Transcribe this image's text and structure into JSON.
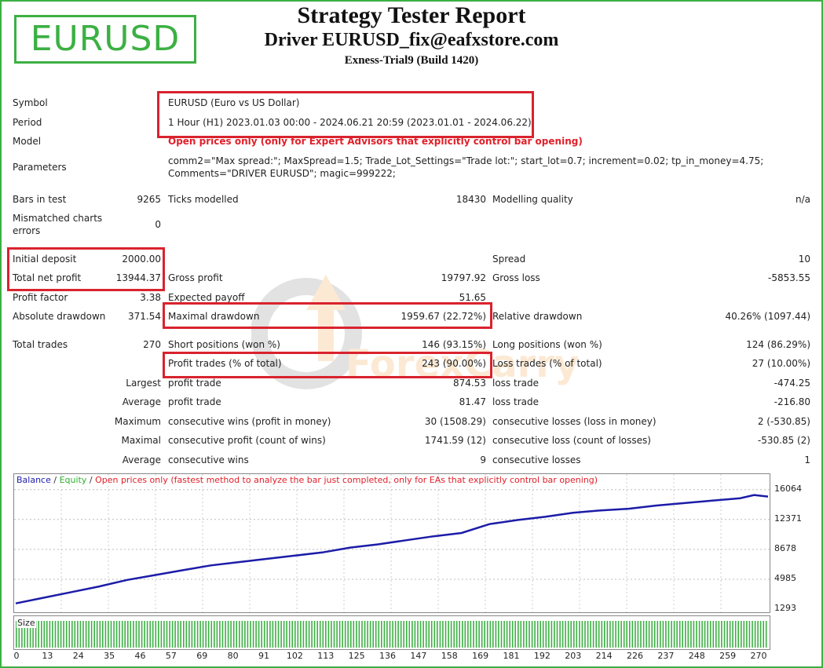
{
  "header": {
    "logo_text": "EURUSD",
    "title": "Strategy Tester Report",
    "subtitle": "Driver EURUSD_fix@eafxstore.com",
    "server": "Exness-Trial9 (Build 1420)"
  },
  "info": {
    "symbol_label": "Symbol",
    "symbol_value": "EURUSD (Euro vs US Dollar)",
    "period_label": "Period",
    "period_value": "1 Hour (H1) 2023.01.03 00:00 - 2024.06.21 20:59 (2023.01.01 - 2024.06.22)",
    "model_label": "Model",
    "model_value": "Open prices only (only for Expert Advisors that explicitly control bar opening)",
    "parameters_label": "Parameters",
    "parameters_line1": "comm2=\"Max spread:\"; MaxSpread=1.5; Trade_Lot_Settings=\"Trade lot:\"; start_lot=0.7; increment=0.02; tp_in_money=4.75;",
    "parameters_line2": "Comments=\"DRIVER EURUSD\"; magic=999222;"
  },
  "stats": {
    "bars_label": "Bars in test",
    "bars_value": "9265",
    "ticks_label": "Ticks modelled",
    "ticks_value": "18430",
    "quality_label": "Modelling quality",
    "quality_value": "n/a",
    "mismatch_label_1": "Mismatched charts",
    "mismatch_label_2": "errors",
    "mismatch_value": "0",
    "deposit_label": "Initial deposit",
    "deposit_value": "2000.00",
    "spread_label": "Spread",
    "spread_value": "10",
    "net_profit_label": "Total net profit",
    "net_profit_value": "13944.37",
    "gross_profit_label": "Gross profit",
    "gross_profit_value": "19797.92",
    "gross_loss_label": "Gross loss",
    "gross_loss_value": "-5853.55",
    "profit_factor_label": "Profit factor",
    "profit_factor_value": "3.38",
    "expected_payoff_label": "Expected payoff",
    "expected_payoff_value": "51.65",
    "abs_dd_label": "Absolute drawdown",
    "abs_dd_value": "371.54",
    "max_dd_label": "Maximal drawdown",
    "max_dd_value": "1959.67 (22.72%)",
    "rel_dd_label": "Relative drawdown",
    "rel_dd_value": "40.26% (1097.44)",
    "total_trades_label": "Total trades",
    "total_trades_value": "270",
    "short_label": "Short positions (won %)",
    "short_value": "146 (93.15%)",
    "long_label": "Long positions (won %)",
    "long_value": "124 (86.29%)",
    "profit_trades_label": "Profit trades (% of total)",
    "profit_trades_value": "243 (90.00%)",
    "loss_trades_label": "Loss trades (% of total)",
    "loss_trades_value": "27 (10.00%)",
    "largest_label": "Largest",
    "largest_profit_label": "profit trade",
    "largest_profit_value": "874.53",
    "largest_loss_label": "loss trade",
    "largest_loss_value": "-474.25",
    "average_label": "Average",
    "avg_profit_label": "profit trade",
    "avg_profit_value": "81.47",
    "avg_loss_label": "loss trade",
    "avg_loss_value": "-216.80",
    "maximum_label": "Maximum",
    "max_cons_wins_label": "consecutive wins (profit in money)",
    "max_cons_wins_value": "30 (1508.29)",
    "max_cons_losses_label": "consecutive losses (loss in money)",
    "max_cons_losses_value": "2 (-530.85)",
    "maximal_label": "Maximal",
    "maximal_profit_label": "consecutive profit (count of wins)",
    "maximal_profit_value": "1741.59 (12)",
    "maximal_loss_label": "consecutive loss (count of losses)",
    "maximal_loss_value": "-530.85 (2)",
    "average2_label": "Average",
    "avg_cons_wins_label": "consecutive wins",
    "avg_cons_wins_value": "9",
    "avg_cons_losses_label": "consecutive losses",
    "avg_cons_losses_value": "1"
  },
  "watermark": {
    "text": "ForexCarry"
  },
  "chart_legend": {
    "balance": "Balance",
    "sep1": " / ",
    "equity": "Equity",
    "sep2": " / ",
    "note": "Open prices only (fastest method to analyze the bar just completed, only for EAs that explicitly control bar opening)",
    "size_label": "Size"
  },
  "colors": {
    "balance": "#1c1ca8",
    "equity": "#30b030",
    "note": "#e0202a",
    "highlight": "#d9232d",
    "logo": "#3cb043",
    "size_bars": "#3cb043"
  },
  "chart_data": {
    "type": "line",
    "series": [
      {
        "name": "Balance",
        "x": [
          0,
          10,
          20,
          30,
          40,
          50,
          60,
          70,
          80,
          90,
          100,
          110,
          120,
          130,
          140,
          150,
          160,
          170,
          180,
          190,
          200,
          210,
          220,
          230,
          240,
          250,
          260,
          265,
          270
        ],
        "values": [
          2000,
          2700,
          3400,
          4100,
          4900,
          5500,
          6100,
          6700,
          7100,
          7500,
          7900,
          8300,
          8900,
          9300,
          9800,
          10300,
          10700,
          11800,
          12300,
          12700,
          13200,
          13500,
          13700,
          14100,
          14400,
          14700,
          15000,
          15400,
          15200
        ]
      }
    ],
    "x_ticks": [
      "0",
      "13",
      "24",
      "35",
      "46",
      "57",
      "69",
      "80",
      "91",
      "102",
      "113",
      "125",
      "136",
      "147",
      "158",
      "169",
      "181",
      "192",
      "203",
      "214",
      "226",
      "237",
      "248",
      "259",
      "270"
    ],
    "y_ticks": [
      "16064",
      "12371",
      "8678",
      "4985",
      "1293"
    ],
    "xlim": [
      0,
      270
    ],
    "ylim": [
      1293,
      17300
    ]
  }
}
